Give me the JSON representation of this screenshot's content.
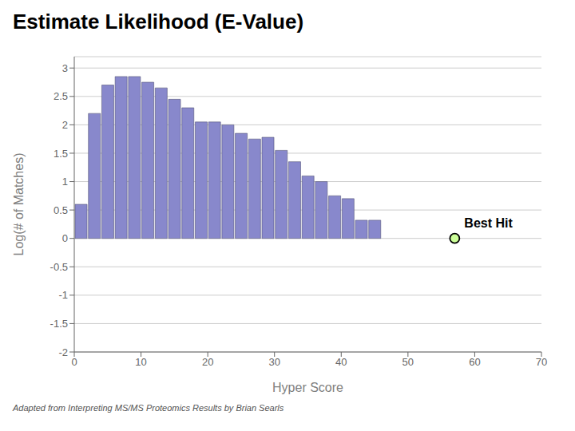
{
  "chart_data": {
    "type": "bar",
    "title": "Estimate Likelihood (E-Value)",
    "caption": "Adapted from Interpreting MS/MS Proteomics Results by Brian Searls",
    "xlabel": "Hyper Score",
    "ylabel": "Log(# of Matches)",
    "x": [
      1,
      3,
      5,
      7,
      9,
      11,
      13,
      15,
      17,
      19,
      21,
      23,
      25,
      27,
      29,
      31,
      33,
      35,
      37,
      39,
      41,
      43,
      45
    ],
    "values": [
      0.6,
      2.2,
      2.7,
      2.85,
      2.85,
      2.75,
      2.65,
      2.45,
      2.3,
      2.05,
      2.05,
      2.0,
      1.85,
      1.75,
      1.78,
      1.55,
      1.35,
      1.1,
      1.0,
      0.75,
      0.7,
      0.32,
      0.32
    ],
    "color": "#8888cc",
    "xlim": [
      0,
      70
    ],
    "ylim": [
      -2,
      3.2
    ],
    "xticks": [
      0,
      10,
      20,
      30,
      40,
      50,
      60,
      70
    ],
    "yticks": [
      -2,
      -1.5,
      -1,
      -0.5,
      0,
      0.5,
      1,
      1.5,
      2,
      2.5,
      3
    ],
    "grid": true,
    "annotations": [
      {
        "text": "Best Hit",
        "x": 57,
        "y": 0,
        "marker": "circle",
        "color": "#ccff99"
      }
    ]
  }
}
